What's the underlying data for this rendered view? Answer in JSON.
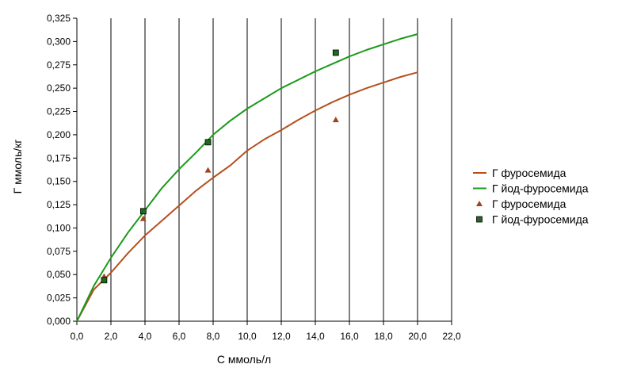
{
  "chart_data": {
    "type": "scatter",
    "title": "",
    "xlabel": "С ммоль/л",
    "ylabel": "Г ммоль/кг",
    "xlim": [
      0,
      22
    ],
    "ylim": [
      0,
      0.325
    ],
    "x_ticks": [
      0,
      2,
      4,
      6,
      8,
      10,
      12,
      14,
      16,
      18,
      20,
      22
    ],
    "y_ticks": [
      0,
      0.025,
      0.05,
      0.075,
      0.1,
      0.125,
      0.15,
      0.175,
      0.2,
      0.225,
      0.25,
      0.275,
      0.3,
      0.325
    ],
    "x_tick_labels": [
      "0,0",
      "2,0",
      "4,0",
      "6,0",
      "8,0",
      "10,0",
      "12,0",
      "14,0",
      "16,0",
      "18,0",
      "20,0",
      "22,0"
    ],
    "y_tick_labels": [
      "0,000",
      "0,025",
      "0,050",
      "0,075",
      "0,100",
      "0,125",
      "0,150",
      "0,175",
      "0,200",
      "0,225",
      "0,250",
      "0,275",
      "0,300",
      "0,325"
    ],
    "grid": "vertical",
    "legend_position": "right",
    "series": [
      {
        "name": "Г фуросемида",
        "kind": "line",
        "color": "#b5501e",
        "x": [
          0,
          1,
          2,
          3,
          4,
          5,
          6,
          7,
          8,
          9,
          10,
          11,
          12,
          13,
          14,
          15,
          16,
          17,
          18,
          19,
          20
        ],
        "y": [
          0,
          0.034,
          0.052,
          0.073,
          0.092,
          0.108,
          0.124,
          0.14,
          0.154,
          0.167,
          0.183,
          0.195,
          0.205,
          0.216,
          0.226,
          0.235,
          0.243,
          0.25,
          0.256,
          0.262,
          0.267
        ]
      },
      {
        "name": "Г йод-фуросемида",
        "kind": "line",
        "color": "#1a9a1a",
        "x": [
          0,
          1,
          2,
          3,
          4,
          5,
          6,
          7,
          8,
          9,
          10,
          11,
          12,
          13,
          14,
          15,
          16,
          17,
          18,
          19,
          20
        ],
        "y": [
          0,
          0.038,
          0.068,
          0.095,
          0.119,
          0.143,
          0.163,
          0.181,
          0.2,
          0.215,
          0.228,
          0.239,
          0.25,
          0.259,
          0.268,
          0.276,
          0.284,
          0.291,
          0.297,
          0.303,
          0.308
        ]
      },
      {
        "name": "Г фуросемида",
        "kind": "points",
        "marker": "triangle",
        "color": "#a0441a",
        "x": [
          1.6,
          3.9,
          7.7,
          15.2
        ],
        "y": [
          0.048,
          0.11,
          0.162,
          0.216
        ]
      },
      {
        "name": "Г йод-фуросемида",
        "kind": "points",
        "marker": "square",
        "color": "#1f6a1f",
        "x": [
          1.6,
          3.9,
          7.7,
          15.2
        ],
        "y": [
          0.044,
          0.118,
          0.192,
          0.288
        ]
      }
    ]
  }
}
